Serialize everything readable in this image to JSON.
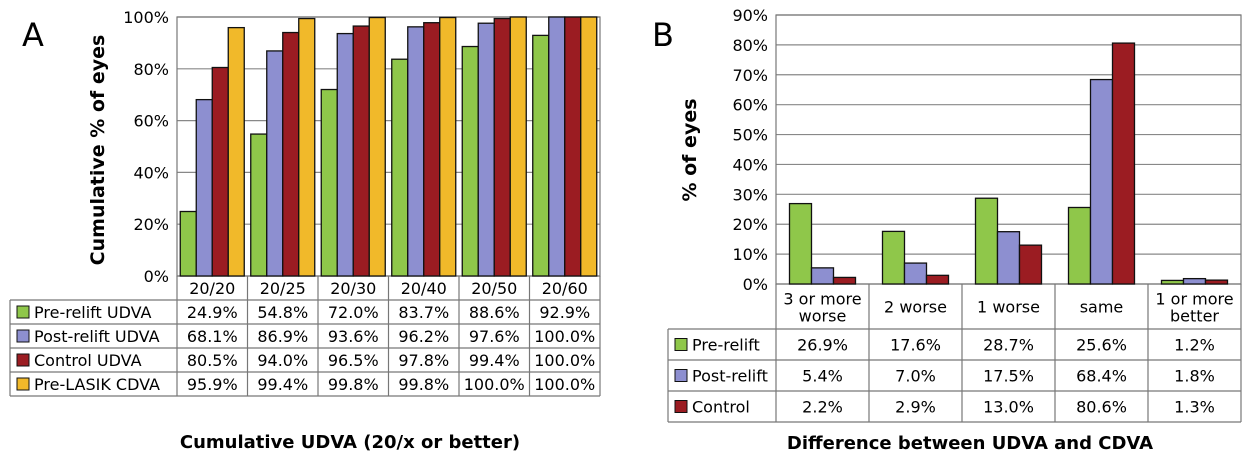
{
  "chart_data": [
    {
      "type": "bar",
      "panel_label": "A",
      "categories": [
        "20/20",
        "20/25",
        "20/30",
        "20/40",
        "20/50",
        "20/60"
      ],
      "series": [
        {
          "name": "Pre-relift UDVA",
          "color": "#8fc74a",
          "values": [
            24.9,
            54.8,
            72.0,
            83.7,
            88.6,
            92.9
          ],
          "labels": [
            "24.9%",
            "54.8%",
            "72.0%",
            "83.7%",
            "88.6%",
            "92.9%"
          ]
        },
        {
          "name": "Post-relift UDVA",
          "color": "#8d8fd0",
          "values": [
            68.1,
            86.9,
            93.6,
            96.2,
            97.6,
            100.0
          ],
          "labels": [
            "68.1%",
            "86.9%",
            "93.6%",
            "96.2%",
            "97.6%",
            "100.0%"
          ]
        },
        {
          "name": "Control UDVA",
          "color": "#9b1c22",
          "values": [
            80.5,
            94.0,
            96.5,
            97.8,
            99.4,
            100.0
          ],
          "labels": [
            "80.5%",
            "94.0%",
            "96.5%",
            "97.8%",
            "99.4%",
            "100.0%"
          ]
        },
        {
          "name": "Pre-LASIK CDVA",
          "color": "#f1b92a",
          "values": [
            95.9,
            99.4,
            99.8,
            99.8,
            100.0,
            100.0
          ],
          "labels": [
            "95.9%",
            "99.4%",
            "99.8%",
            "99.8%",
            "100.0%",
            "100.0%"
          ]
        }
      ],
      "yticks": [
        "0%",
        "20%",
        "40%",
        "60%",
        "80%",
        "100%"
      ],
      "ylim": [
        0,
        100
      ],
      "ylabel": "Cumulative % of eyes",
      "xlabel": "Cumulative UDVA (20/x or better)",
      "grid": true
    },
    {
      "type": "bar",
      "panel_label": "B",
      "categories": [
        [
          "3 or more",
          "worse"
        ],
        [
          "2 worse"
        ],
        [
          "1 worse"
        ],
        [
          "same"
        ],
        [
          "1 or more",
          "better"
        ]
      ],
      "series": [
        {
          "name": "Pre-relift",
          "color": "#8fc74a",
          "values": [
            26.9,
            17.6,
            28.7,
            25.6,
            1.2
          ],
          "labels": [
            "26.9%",
            "17.6%",
            "28.7%",
            "25.6%",
            "1.2%"
          ]
        },
        {
          "name": "Post-relift",
          "color": "#8d8fd0",
          "values": [
            5.4,
            7.0,
            17.5,
            68.4,
            1.8
          ],
          "labels": [
            "5.4%",
            "7.0%",
            "17.5%",
            "68.4%",
            "1.8%"
          ]
        },
        {
          "name": "Control",
          "color": "#9b1c22",
          "values": [
            2.2,
            2.9,
            13.0,
            80.6,
            1.3
          ],
          "labels": [
            "2.2%",
            "2.9%",
            "13.0%",
            "80.6%",
            "1.3%"
          ]
        }
      ],
      "yticks": [
        "0%",
        "10%",
        "20%",
        "30%",
        "40%",
        "50%",
        "60%",
        "70%",
        "80%",
        "90%"
      ],
      "ylim": [
        0,
        90
      ],
      "ylabel": "% of eyes",
      "xlabel": "Difference between UDVA and CDVA",
      "grid": true
    }
  ]
}
